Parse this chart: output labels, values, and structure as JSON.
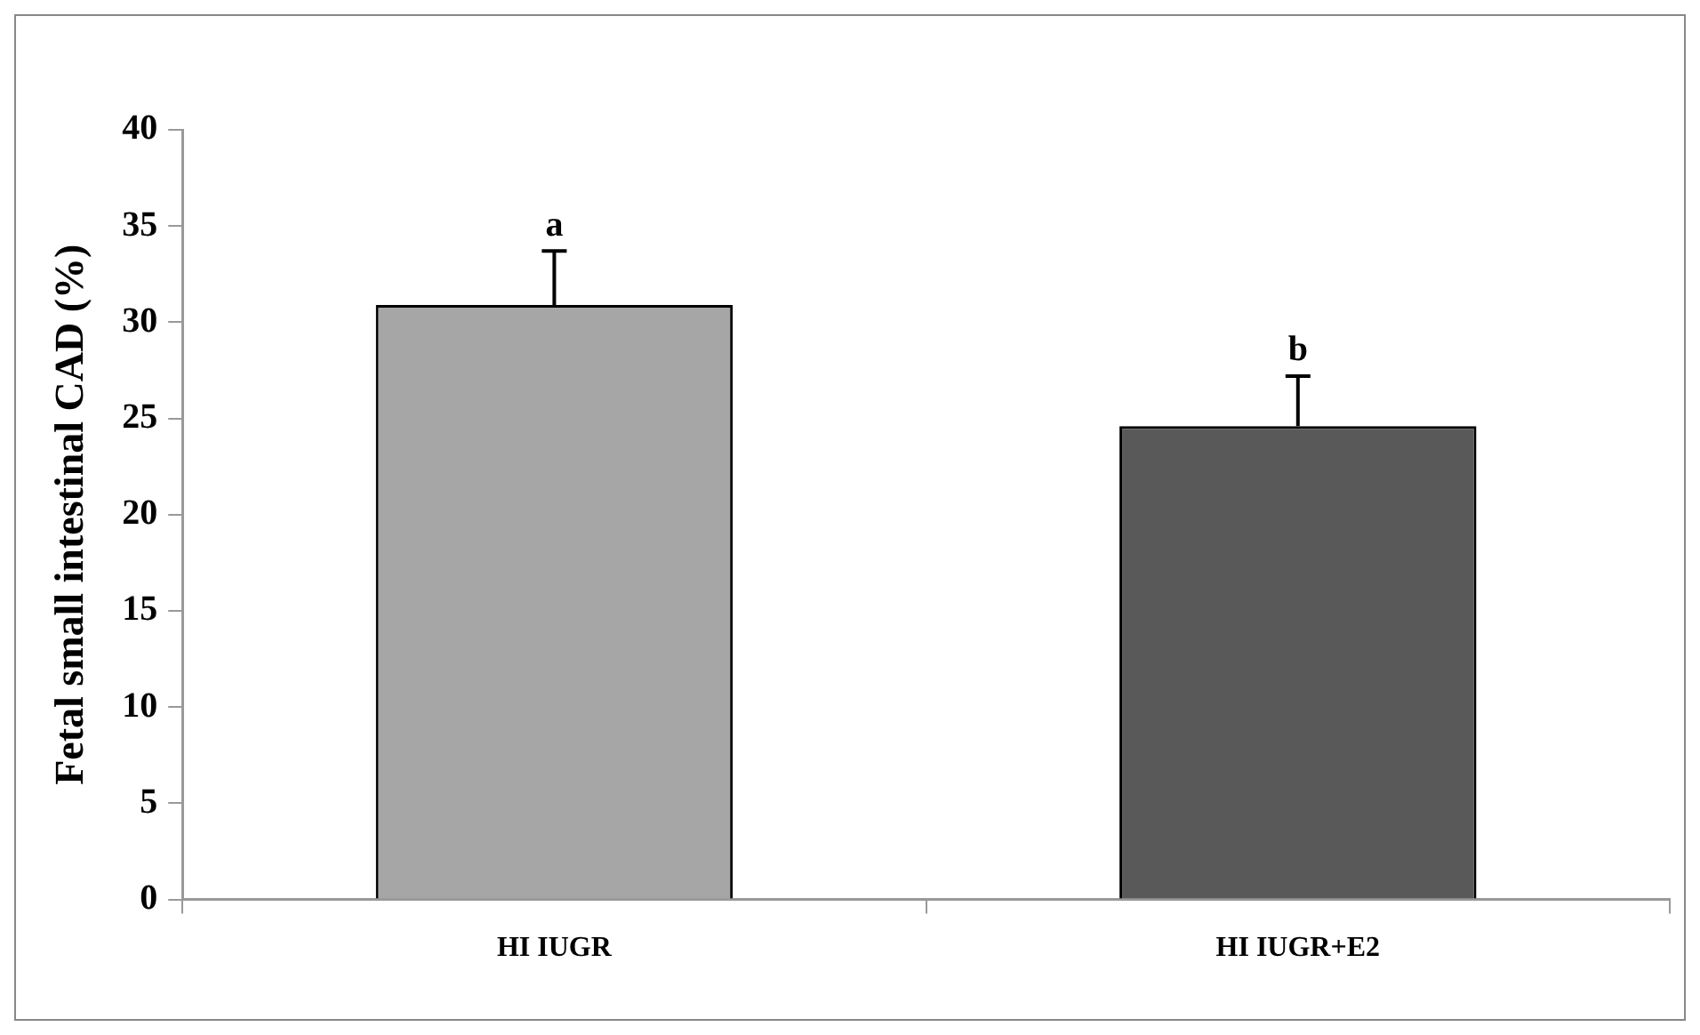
{
  "chart_data": {
    "type": "bar",
    "ylabel": "Fetal small intestinal CAD (%)",
    "categories": [
      "HI IUGR",
      "HI IUGR+E2"
    ],
    "values": [
      30.9,
      24.6
    ],
    "colors": [
      "#a6a6a6",
      "#595959"
    ],
    "errors": [
      [
        30.9,
        33.7
      ],
      [
        24.6,
        27.2
      ]
    ],
    "annotations": [
      "a",
      "b"
    ],
    "ylim": [
      0,
      40
    ],
    "yticks": [
      0,
      5,
      10,
      15,
      20,
      25,
      30,
      35,
      40
    ],
    "grid": false,
    "legend": false
  }
}
